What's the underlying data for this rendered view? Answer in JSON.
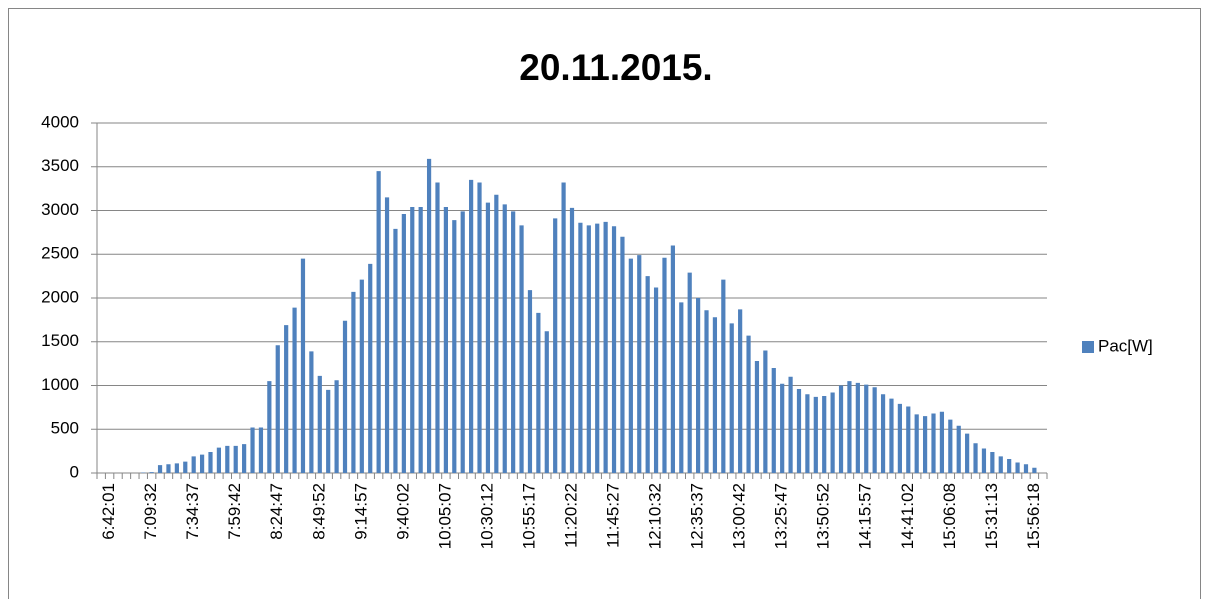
{
  "chart_data": {
    "type": "bar",
    "title": "20.11.2015.",
    "categories": [
      null,
      "6:42:01",
      null,
      null,
      null,
      null,
      "7:09:32",
      null,
      null,
      null,
      null,
      "7:34:37",
      null,
      null,
      null,
      null,
      "7:59:42",
      null,
      null,
      null,
      null,
      "8:24:47",
      null,
      null,
      null,
      null,
      "8:49:52",
      null,
      null,
      null,
      null,
      "9:14:57",
      null,
      null,
      null,
      null,
      "9:40:02",
      null,
      null,
      null,
      null,
      "10:05:07",
      null,
      null,
      null,
      null,
      "10:30:12",
      null,
      null,
      null,
      null,
      "10:55:17",
      null,
      null,
      null,
      null,
      "11:20:22",
      null,
      null,
      null,
      null,
      "11:45:27",
      null,
      null,
      null,
      null,
      "12:10:32",
      null,
      null,
      null,
      null,
      "12:35:37",
      null,
      null,
      null,
      null,
      "13:00:42",
      null,
      null,
      null,
      null,
      "13:25:47",
      null,
      null,
      null,
      null,
      "13:50:52",
      null,
      null,
      null,
      null,
      "14:15:57",
      null,
      null,
      null,
      null,
      "14:41:02",
      null,
      null,
      null,
      null,
      "15:06:08",
      null,
      null,
      null,
      null,
      "15:31:13",
      null,
      null,
      null,
      null,
      "15:56:18",
      null
    ],
    "series": [
      {
        "name": "Pac[W]",
        "color": "#4f81bd",
        "values": [
          0,
          0,
          0,
          0,
          0,
          5,
          10,
          90,
          100,
          110,
          130,
          190,
          210,
          240,
          290,
          310,
          310,
          330,
          520,
          520,
          1050,
          1460,
          1690,
          1890,
          2450,
          1390,
          1110,
          950,
          1060,
          1740,
          2070,
          2210,
          2390,
          3450,
          3150,
          2790,
          2960,
          3040,
          3040,
          3590,
          3320,
          3040,
          2890,
          2990,
          3350,
          3320,
          3090,
          3180,
          3070,
          2990,
          2830,
          2090,
          1830,
          1620,
          2910,
          3320,
          3030,
          2860,
          2830,
          2850,
          2870,
          2820,
          2700,
          2450,
          2490,
          2250,
          2120,
          2460,
          2600,
          1950,
          2290,
          2000,
          1860,
          1780,
          2210,
          1710,
          1870,
          1570,
          1280,
          1400,
          1200,
          1020,
          1100,
          960,
          900,
          870,
          880,
          920,
          1000,
          1050,
          1030,
          1010,
          980,
          900,
          850,
          790,
          760,
          670,
          650,
          680,
          700,
          610,
          540,
          450,
          340,
          280,
          240,
          190,
          160,
          120,
          100,
          60,
          0
        ]
      }
    ],
    "ylim": [
      0,
      4000
    ],
    "yticks": [
      0,
      500,
      1000,
      1500,
      2000,
      2500,
      3000,
      3500,
      4000
    ],
    "grid": true,
    "legend": "right"
  }
}
